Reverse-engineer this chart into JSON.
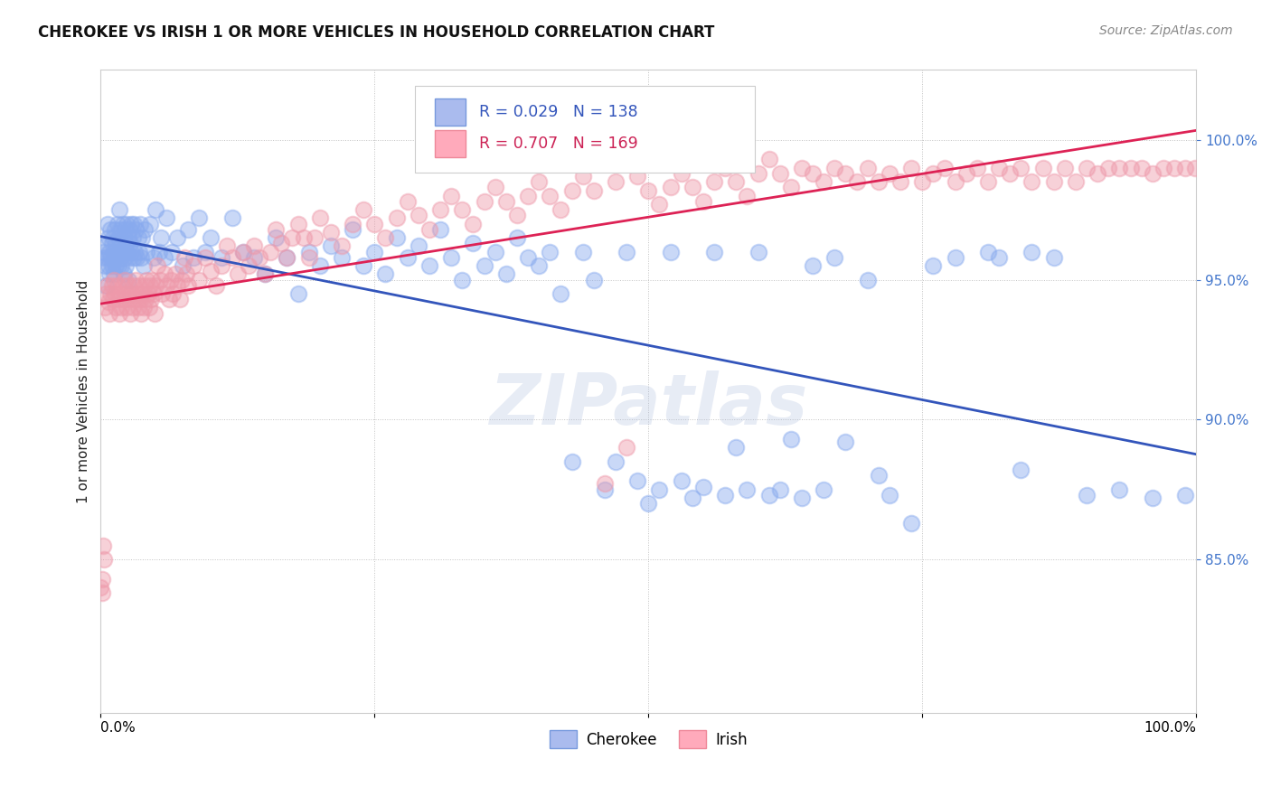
{
  "title": "CHEROKEE VS IRISH 1 OR MORE VEHICLES IN HOUSEHOLD CORRELATION CHART",
  "source": "Source: ZipAtlas.com",
  "ylabel": "1 or more Vehicles in Household",
  "yticks": [
    "85.0%",
    "90.0%",
    "95.0%",
    "100.0%"
  ],
  "ytick_values": [
    0.85,
    0.9,
    0.95,
    1.0
  ],
  "xrange": [
    0.0,
    1.0
  ],
  "yrange": [
    0.795,
    1.025
  ],
  "watermark": "ZIPatlas",
  "cherokee_color": "#88aaee",
  "irish_color": "#ee99aa",
  "line_cherokee_color": "#3355bb",
  "line_irish_color": "#dd2255",
  "cherokee_r": 0.029,
  "cherokee_n": 138,
  "irish_r": 0.707,
  "irish_n": 169,
  "legend_text_cherokee": "R = 0.029   N = 138",
  "legend_text_irish": "R = 0.707   N = 169",
  "cherokee_points": [
    [
      0.002,
      0.96
    ],
    [
      0.003,
      0.958
    ],
    [
      0.004,
      0.955
    ],
    [
      0.005,
      0.962
    ],
    [
      0.005,
      0.948
    ],
    [
      0.006,
      0.97
    ],
    [
      0.006,
      0.958
    ],
    [
      0.007,
      0.965
    ],
    [
      0.007,
      0.955
    ],
    [
      0.008,
      0.96
    ],
    [
      0.008,
      0.952
    ],
    [
      0.009,
      0.968
    ],
    [
      0.009,
      0.958
    ],
    [
      0.01,
      0.963
    ],
    [
      0.01,
      0.955
    ],
    [
      0.011,
      0.965
    ],
    [
      0.011,
      0.958
    ],
    [
      0.012,
      0.96
    ],
    [
      0.012,
      0.952
    ],
    [
      0.013,
      0.968
    ],
    [
      0.013,
      0.958
    ],
    [
      0.014,
      0.963
    ],
    [
      0.014,
      0.955
    ],
    [
      0.015,
      0.97
    ],
    [
      0.015,
      0.96
    ],
    [
      0.016,
      0.965
    ],
    [
      0.016,
      0.955
    ],
    [
      0.017,
      0.975
    ],
    [
      0.017,
      0.96
    ],
    [
      0.018,
      0.968
    ],
    [
      0.018,
      0.958
    ],
    [
      0.019,
      0.963
    ],
    [
      0.019,
      0.955
    ],
    [
      0.02,
      0.97
    ],
    [
      0.02,
      0.96
    ],
    [
      0.021,
      0.965
    ],
    [
      0.021,
      0.952
    ],
    [
      0.022,
      0.968
    ],
    [
      0.022,
      0.958
    ],
    [
      0.023,
      0.963
    ],
    [
      0.023,
      0.955
    ],
    [
      0.024,
      0.97
    ],
    [
      0.024,
      0.96
    ],
    [
      0.025,
      0.965
    ],
    [
      0.025,
      0.95
    ],
    [
      0.026,
      0.968
    ],
    [
      0.026,
      0.958
    ],
    [
      0.027,
      0.963
    ],
    [
      0.028,
      0.97
    ],
    [
      0.028,
      0.96
    ],
    [
      0.029,
      0.965
    ],
    [
      0.03,
      0.958
    ],
    [
      0.03,
      0.97
    ],
    [
      0.031,
      0.96
    ],
    [
      0.032,
      0.968
    ],
    [
      0.033,
      0.958
    ],
    [
      0.034,
      0.965
    ],
    [
      0.035,
      0.96
    ],
    [
      0.036,
      0.97
    ],
    [
      0.037,
      0.958
    ],
    [
      0.038,
      0.965
    ],
    [
      0.039,
      0.955
    ],
    [
      0.04,
      0.968
    ],
    [
      0.042,
      0.96
    ],
    [
      0.045,
      0.97
    ],
    [
      0.048,
      0.958
    ],
    [
      0.05,
      0.975
    ],
    [
      0.053,
      0.96
    ],
    [
      0.055,
      0.965
    ],
    [
      0.058,
      0.958
    ],
    [
      0.06,
      0.972
    ],
    [
      0.065,
      0.96
    ],
    [
      0.07,
      0.965
    ],
    [
      0.075,
      0.955
    ],
    [
      0.08,
      0.968
    ],
    [
      0.085,
      0.958
    ],
    [
      0.09,
      0.972
    ],
    [
      0.095,
      0.96
    ],
    [
      0.1,
      0.965
    ],
    [
      0.11,
      0.958
    ],
    [
      0.12,
      0.972
    ],
    [
      0.13,
      0.96
    ],
    [
      0.14,
      0.958
    ],
    [
      0.15,
      0.952
    ],
    [
      0.16,
      0.965
    ],
    [
      0.17,
      0.958
    ],
    [
      0.18,
      0.945
    ],
    [
      0.19,
      0.96
    ],
    [
      0.2,
      0.955
    ],
    [
      0.21,
      0.962
    ],
    [
      0.22,
      0.958
    ],
    [
      0.23,
      0.968
    ],
    [
      0.24,
      0.955
    ],
    [
      0.25,
      0.96
    ],
    [
      0.26,
      0.952
    ],
    [
      0.27,
      0.965
    ],
    [
      0.28,
      0.958
    ],
    [
      0.29,
      0.962
    ],
    [
      0.3,
      0.955
    ],
    [
      0.31,
      0.968
    ],
    [
      0.32,
      0.958
    ],
    [
      0.33,
      0.95
    ],
    [
      0.34,
      0.963
    ],
    [
      0.35,
      0.955
    ],
    [
      0.36,
      0.96
    ],
    [
      0.37,
      0.952
    ],
    [
      0.38,
      0.965
    ],
    [
      0.39,
      0.958
    ],
    [
      0.4,
      0.955
    ],
    [
      0.41,
      0.96
    ],
    [
      0.42,
      0.945
    ],
    [
      0.43,
      0.885
    ],
    [
      0.44,
      0.96
    ],
    [
      0.45,
      0.95
    ],
    [
      0.46,
      0.875
    ],
    [
      0.47,
      0.885
    ],
    [
      0.48,
      0.96
    ],
    [
      0.49,
      0.878
    ],
    [
      0.5,
      0.87
    ],
    [
      0.51,
      0.875
    ],
    [
      0.52,
      0.96
    ],
    [
      0.53,
      0.878
    ],
    [
      0.54,
      0.872
    ],
    [
      0.55,
      0.876
    ],
    [
      0.56,
      0.96
    ],
    [
      0.57,
      0.873
    ],
    [
      0.58,
      0.89
    ],
    [
      0.59,
      0.875
    ],
    [
      0.6,
      0.96
    ],
    [
      0.61,
      0.873
    ],
    [
      0.62,
      0.875
    ],
    [
      0.63,
      0.893
    ],
    [
      0.64,
      0.872
    ],
    [
      0.65,
      0.955
    ],
    [
      0.66,
      0.875
    ],
    [
      0.67,
      0.958
    ],
    [
      0.68,
      0.892
    ],
    [
      0.7,
      0.95
    ],
    [
      0.71,
      0.88
    ],
    [
      0.72,
      0.873
    ],
    [
      0.74,
      0.863
    ],
    [
      0.76,
      0.955
    ],
    [
      0.78,
      0.958
    ],
    [
      0.81,
      0.96
    ],
    [
      0.82,
      0.958
    ],
    [
      0.84,
      0.882
    ],
    [
      0.85,
      0.96
    ],
    [
      0.87,
      0.958
    ],
    [
      0.9,
      0.873
    ],
    [
      0.93,
      0.875
    ],
    [
      0.96,
      0.872
    ],
    [
      0.99,
      0.873
    ]
  ],
  "irish_points": [
    [
      0.0,
      0.84
    ],
    [
      0.001,
      0.843
    ],
    [
      0.001,
      0.838
    ],
    [
      0.002,
      0.855
    ],
    [
      0.003,
      0.85
    ],
    [
      0.004,
      0.94
    ],
    [
      0.005,
      0.945
    ],
    [
      0.006,
      0.948
    ],
    [
      0.007,
      0.942
    ],
    [
      0.008,
      0.938
    ],
    [
      0.009,
      0.945
    ],
    [
      0.01,
      0.948
    ],
    [
      0.011,
      0.943
    ],
    [
      0.012,
      0.95
    ],
    [
      0.013,
      0.945
    ],
    [
      0.014,
      0.94
    ],
    [
      0.015,
      0.948
    ],
    [
      0.016,
      0.943
    ],
    [
      0.017,
      0.938
    ],
    [
      0.018,
      0.945
    ],
    [
      0.019,
      0.94
    ],
    [
      0.02,
      0.948
    ],
    [
      0.021,
      0.943
    ],
    [
      0.022,
      0.95
    ],
    [
      0.023,
      0.945
    ],
    [
      0.024,
      0.94
    ],
    [
      0.025,
      0.948
    ],
    [
      0.026,
      0.943
    ],
    [
      0.027,
      0.938
    ],
    [
      0.028,
      0.945
    ],
    [
      0.029,
      0.94
    ],
    [
      0.03,
      0.948
    ],
    [
      0.031,
      0.943
    ],
    [
      0.032,
      0.95
    ],
    [
      0.033,
      0.945
    ],
    [
      0.034,
      0.94
    ],
    [
      0.035,
      0.948
    ],
    [
      0.036,
      0.943
    ],
    [
      0.037,
      0.938
    ],
    [
      0.038,
      0.945
    ],
    [
      0.039,
      0.94
    ],
    [
      0.04,
      0.948
    ],
    [
      0.041,
      0.943
    ],
    [
      0.042,
      0.95
    ],
    [
      0.043,
      0.945
    ],
    [
      0.044,
      0.94
    ],
    [
      0.045,
      0.948
    ],
    [
      0.046,
      0.943
    ],
    [
      0.047,
      0.95
    ],
    [
      0.048,
      0.945
    ],
    [
      0.049,
      0.938
    ],
    [
      0.05,
      0.948
    ],
    [
      0.052,
      0.955
    ],
    [
      0.054,
      0.95
    ],
    [
      0.056,
      0.945
    ],
    [
      0.058,
      0.952
    ],
    [
      0.06,
      0.948
    ],
    [
      0.062,
      0.943
    ],
    [
      0.064,
      0.95
    ],
    [
      0.066,
      0.945
    ],
    [
      0.068,
      0.952
    ],
    [
      0.07,
      0.948
    ],
    [
      0.072,
      0.943
    ],
    [
      0.074,
      0.95
    ],
    [
      0.076,
      0.958
    ],
    [
      0.078,
      0.952
    ],
    [
      0.08,
      0.948
    ],
    [
      0.085,
      0.955
    ],
    [
      0.09,
      0.95
    ],
    [
      0.095,
      0.958
    ],
    [
      0.1,
      0.953
    ],
    [
      0.105,
      0.948
    ],
    [
      0.11,
      0.955
    ],
    [
      0.115,
      0.962
    ],
    [
      0.12,
      0.958
    ],
    [
      0.125,
      0.952
    ],
    [
      0.13,
      0.96
    ],
    [
      0.135,
      0.955
    ],
    [
      0.14,
      0.962
    ],
    [
      0.145,
      0.958
    ],
    [
      0.15,
      0.952
    ],
    [
      0.155,
      0.96
    ],
    [
      0.16,
      0.968
    ],
    [
      0.165,
      0.963
    ],
    [
      0.17,
      0.958
    ],
    [
      0.175,
      0.965
    ],
    [
      0.18,
      0.97
    ],
    [
      0.185,
      0.965
    ],
    [
      0.19,
      0.958
    ],
    [
      0.195,
      0.965
    ],
    [
      0.2,
      0.972
    ],
    [
      0.21,
      0.967
    ],
    [
      0.22,
      0.962
    ],
    [
      0.23,
      0.97
    ],
    [
      0.24,
      0.975
    ],
    [
      0.25,
      0.97
    ],
    [
      0.26,
      0.965
    ],
    [
      0.27,
      0.972
    ],
    [
      0.28,
      0.978
    ],
    [
      0.29,
      0.973
    ],
    [
      0.3,
      0.968
    ],
    [
      0.31,
      0.975
    ],
    [
      0.32,
      0.98
    ],
    [
      0.33,
      0.975
    ],
    [
      0.34,
      0.97
    ],
    [
      0.35,
      0.978
    ],
    [
      0.36,
      0.983
    ],
    [
      0.37,
      0.978
    ],
    [
      0.38,
      0.973
    ],
    [
      0.39,
      0.98
    ],
    [
      0.4,
      0.985
    ],
    [
      0.41,
      0.98
    ],
    [
      0.42,
      0.975
    ],
    [
      0.43,
      0.982
    ],
    [
      0.44,
      0.987
    ],
    [
      0.45,
      0.982
    ],
    [
      0.46,
      0.877
    ],
    [
      0.47,
      0.985
    ],
    [
      0.48,
      0.89
    ],
    [
      0.49,
      0.987
    ],
    [
      0.5,
      0.982
    ],
    [
      0.51,
      0.977
    ],
    [
      0.52,
      0.983
    ],
    [
      0.53,
      0.988
    ],
    [
      0.54,
      0.983
    ],
    [
      0.55,
      0.978
    ],
    [
      0.56,
      0.985
    ],
    [
      0.57,
      0.99
    ],
    [
      0.58,
      0.985
    ],
    [
      0.59,
      0.98
    ],
    [
      0.6,
      0.988
    ],
    [
      0.61,
      0.993
    ],
    [
      0.62,
      0.988
    ],
    [
      0.63,
      0.983
    ],
    [
      0.64,
      0.99
    ],
    [
      0.65,
      0.988
    ],
    [
      0.66,
      0.985
    ],
    [
      0.67,
      0.99
    ],
    [
      0.68,
      0.988
    ],
    [
      0.69,
      0.985
    ],
    [
      0.7,
      0.99
    ],
    [
      0.71,
      0.985
    ],
    [
      0.72,
      0.988
    ],
    [
      0.73,
      0.985
    ],
    [
      0.74,
      0.99
    ],
    [
      0.75,
      0.985
    ],
    [
      0.76,
      0.988
    ],
    [
      0.77,
      0.99
    ],
    [
      0.78,
      0.985
    ],
    [
      0.79,
      0.988
    ],
    [
      0.8,
      0.99
    ],
    [
      0.81,
      0.985
    ],
    [
      0.82,
      0.99
    ],
    [
      0.83,
      0.988
    ],
    [
      0.84,
      0.99
    ],
    [
      0.85,
      0.985
    ],
    [
      0.86,
      0.99
    ],
    [
      0.87,
      0.985
    ],
    [
      0.88,
      0.99
    ],
    [
      0.89,
      0.985
    ],
    [
      0.9,
      0.99
    ],
    [
      0.91,
      0.988
    ],
    [
      0.92,
      0.99
    ],
    [
      0.93,
      0.99
    ],
    [
      0.94,
      0.99
    ],
    [
      0.95,
      0.99
    ],
    [
      0.96,
      0.988
    ],
    [
      0.97,
      0.99
    ],
    [
      0.98,
      0.99
    ],
    [
      0.99,
      0.99
    ],
    [
      0.999,
      0.99
    ]
  ]
}
